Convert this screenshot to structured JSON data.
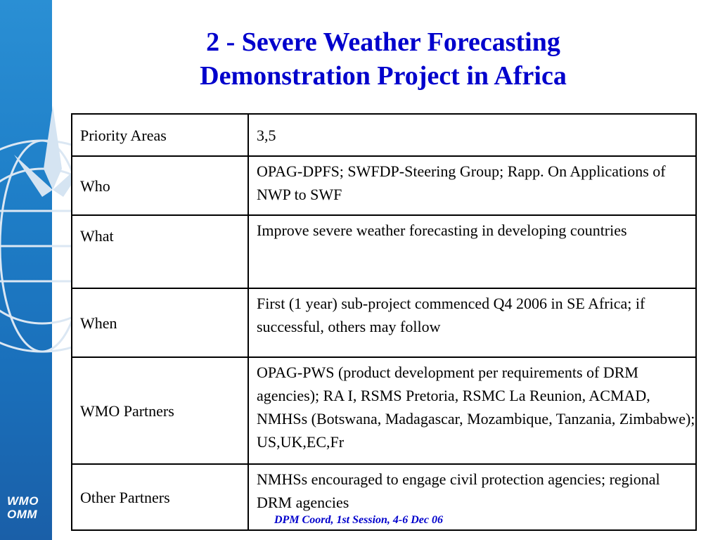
{
  "title": {
    "line1": "2 - Severe Weather Forecasting",
    "line2": "Demonstration Project in Africa"
  },
  "table": {
    "rows": [
      {
        "label": "Priority Areas",
        "value": "3,5"
      },
      {
        "label": "Who",
        "value": "OPAG-DPFS; SWFDP-Steering Group; Rapp. On Applications of NWP to SWF"
      },
      {
        "label": "What",
        "value": "Improve severe weather forecasting in developing countries"
      },
      {
        "label": "When",
        "value": "First (1 year) sub-project commenced Q4 2006 in SE Africa; if successful, others may follow"
      },
      {
        "label": "WMO Partners",
        "value": "OPAG-PWS (product development per requirements of DRM agencies); RA I, RSMS Pretoria, RSMC La Reunion, ACMAD, NMHSs (Botswana, Madagascar, Mozambique, Tanzania, Zimbabwe); US,UK,EC,Fr"
      },
      {
        "label": "Other Partners",
        "value": "NMHSs encouraged to engage civil protection agencies; regional DRM agencies"
      }
    ]
  },
  "logo": {
    "line1": "WMO",
    "line2": "OMM"
  },
  "footer": "DPM Coord, 1st Session, 4-6 Dec 06",
  "colors": {
    "title": "#0000cc",
    "stripe": "#1f7fc8",
    "watermark": "#c9dcef"
  },
  "icons": {
    "watermark": "wmo-emblem-icon"
  }
}
